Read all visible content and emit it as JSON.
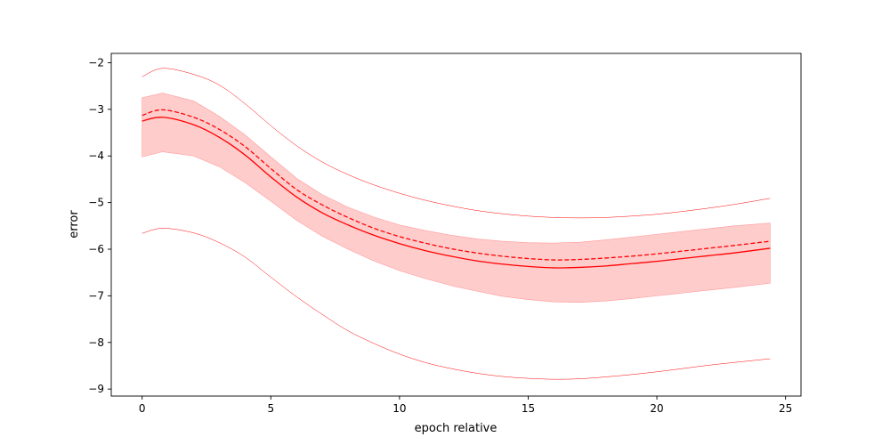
{
  "chart_data": {
    "type": "line",
    "title": "",
    "xlabel": "epoch relative",
    "ylabel": "error",
    "xlim": [
      -1.2,
      25.6
    ],
    "ylim": [
      -9.15,
      -1.8
    ],
    "xticks": [
      0,
      5,
      10,
      15,
      20,
      25
    ],
    "yticks": [
      -9,
      -8,
      -7,
      -6,
      -5,
      -4,
      -3,
      -2
    ],
    "xtick_labels": [
      "0",
      "5",
      "10",
      "15",
      "20",
      "25"
    ],
    "ytick_labels": [
      "−9",
      "−8",
      "−7",
      "−6",
      "−5",
      "−4",
      "−3",
      "−2"
    ],
    "grid": false,
    "legend": "none",
    "color": "#ff0000",
    "band_color": "#ffcccc",
    "x": [
      0,
      0.8,
      2,
      3,
      4,
      5,
      6,
      7,
      8,
      9,
      10,
      11,
      12,
      13,
      14,
      15,
      16,
      17,
      18,
      19,
      20,
      21,
      22,
      23,
      24.4
    ],
    "series": [
      {
        "role": "solid-line",
        "values": [
          -3.25,
          -3.17,
          -3.33,
          -3.6,
          -3.98,
          -4.45,
          -4.88,
          -5.22,
          -5.48,
          -5.7,
          -5.88,
          -6.03,
          -6.15,
          -6.25,
          -6.32,
          -6.37,
          -6.4,
          -6.39,
          -6.36,
          -6.31,
          -6.26,
          -6.2,
          -6.14,
          -6.08,
          -5.98
        ]
      },
      {
        "role": "dashed-line",
        "values": [
          -3.13,
          -3.01,
          -3.17,
          -3.43,
          -3.8,
          -4.27,
          -4.72,
          -5.05,
          -5.32,
          -5.55,
          -5.73,
          -5.87,
          -5.99,
          -6.08,
          -6.15,
          -6.2,
          -6.23,
          -6.22,
          -6.19,
          -6.15,
          -6.1,
          -6.04,
          -5.98,
          -5.92,
          -5.83
        ]
      },
      {
        "role": "band-upper",
        "values": [
          -2.75,
          -2.65,
          -2.82,
          -3.15,
          -3.55,
          -4.02,
          -4.48,
          -4.83,
          -5.1,
          -5.31,
          -5.48,
          -5.6,
          -5.7,
          -5.78,
          -5.83,
          -5.86,
          -5.87,
          -5.85,
          -5.8,
          -5.74,
          -5.68,
          -5.62,
          -5.56,
          -5.5,
          -5.44
        ]
      },
      {
        "role": "band-lower",
        "values": [
          -4.02,
          -3.91,
          -4.0,
          -4.23,
          -4.57,
          -4.97,
          -5.38,
          -5.72,
          -6.0,
          -6.25,
          -6.46,
          -6.63,
          -6.78,
          -6.9,
          -7.01,
          -7.08,
          -7.13,
          -7.14,
          -7.11,
          -7.06,
          -7.0,
          -6.94,
          -6.88,
          -6.82,
          -6.73
        ]
      },
      {
        "role": "upper-thin-line",
        "values": [
          -2.3,
          -2.12,
          -2.25,
          -2.48,
          -2.88,
          -3.35,
          -3.78,
          -4.13,
          -4.4,
          -4.62,
          -4.8,
          -4.95,
          -5.07,
          -5.17,
          -5.24,
          -5.29,
          -5.32,
          -5.33,
          -5.32,
          -5.29,
          -5.25,
          -5.19,
          -5.12,
          -5.04,
          -4.91
        ]
      },
      {
        "role": "lower-thin-line",
        "values": [
          -5.66,
          -5.55,
          -5.65,
          -5.86,
          -6.17,
          -6.6,
          -7.02,
          -7.4,
          -7.75,
          -8.02,
          -8.25,
          -8.43,
          -8.56,
          -8.66,
          -8.73,
          -8.77,
          -8.79,
          -8.78,
          -8.74,
          -8.69,
          -8.63,
          -8.56,
          -8.49,
          -8.43,
          -8.35
        ]
      }
    ]
  }
}
